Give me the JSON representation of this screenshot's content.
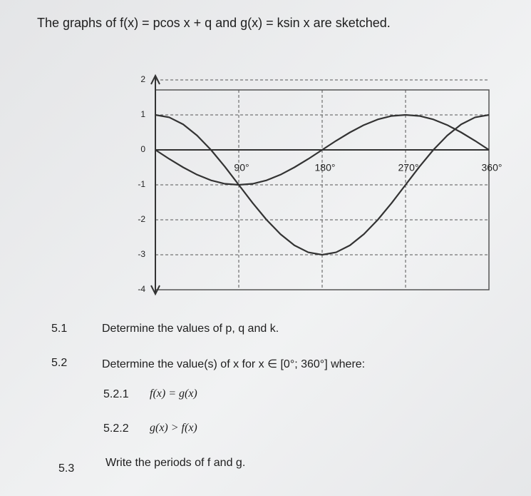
{
  "title": "The graphs of f(x) = pcos x + q and g(x) = ksin x are sketched.",
  "chart_data": {
    "type": "line",
    "x": [
      0,
      15,
      30,
      45,
      60,
      75,
      90,
      105,
      120,
      135,
      150,
      165,
      180,
      195,
      210,
      225,
      240,
      255,
      270,
      285,
      300,
      315,
      330,
      345,
      360
    ],
    "series": [
      {
        "color": "#333333",
        "values": [
          1,
          0.93,
          0.73,
          0.41,
          0,
          -0.48,
          -1,
          -1.52,
          -2,
          -2.41,
          -2.73,
          -2.93,
          -3,
          -2.93,
          -2.73,
          -2.41,
          -2,
          -1.52,
          -1,
          -0.48,
          0,
          0.41,
          0.73,
          0.93,
          1
        ]
      },
      {
        "color": "#333333",
        "values": [
          0,
          -0.26,
          -0.5,
          -0.71,
          -0.87,
          -0.97,
          -1,
          -0.97,
          -0.87,
          -0.71,
          -0.5,
          -0.26,
          0,
          0.26,
          0.5,
          0.71,
          0.87,
          0.97,
          1,
          0.97,
          0.87,
          0.71,
          0.5,
          0.26,
          0
        ]
      }
    ],
    "xlim": [
      0,
      360
    ],
    "ylim": [
      -4,
      2
    ],
    "xticks": [
      {
        "value": 90,
        "label": "90°"
      },
      {
        "value": 180,
        "label": "180°"
      },
      {
        "value": 270,
        "label": "270°"
      },
      {
        "value": 360,
        "label": "360°"
      }
    ],
    "yticks": [
      2,
      1,
      0,
      -1,
      -2,
      -3,
      -4
    ],
    "grid": true
  },
  "questions": [
    {
      "number": "5.1",
      "text": "Determine the values of p, q and k."
    },
    {
      "number": "5.2",
      "text": "Determine the value(s) of x for x ∈ [0°; 360°] where:",
      "parts": [
        {
          "number": "5.2.1",
          "text": "f(x) = g(x)"
        },
        {
          "number": "5.2.2",
          "text": "g(x) > f(x)"
        }
      ]
    },
    {
      "number": "5.3",
      "text": "Write the periods of f and g."
    }
  ]
}
